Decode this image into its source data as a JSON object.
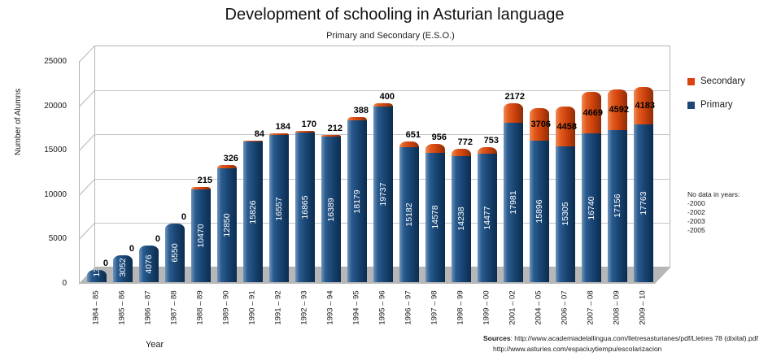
{
  "chart_data": {
    "type": "bar",
    "stacked": true,
    "title": "Development of schooling in Asturian language",
    "subtitle": "Primary and Secondary (E.S.O.)",
    "xlabel": "Year",
    "ylabel": "Number of Alumns",
    "ylim": [
      0,
      25000
    ],
    "ytick_step": 5000,
    "grid": true,
    "legend_position": "right",
    "categories": [
      "1984 – 85",
      "1985 – 86",
      "1986 – 87",
      "1987 – 88",
      "1988 – 89",
      "1989 – 90",
      "1990 – 91",
      "1991 – 92",
      "1992 – 93",
      "1993 – 94",
      "1994 – 95",
      "1995 – 96",
      "1996 – 97",
      "1997 – 98",
      "1998 – 99",
      "1999 – 00",
      "2001 – 02",
      "2004 – 05",
      "2006 – 07",
      "2007 – 08",
      "2008 – 09",
      "2009 – 10"
    ],
    "series": [
      {
        "name": "Primary",
        "color": "#1b4877",
        "values": [
          1351,
          3052,
          4076,
          6550,
          10470,
          12850,
          15826,
          16557,
          16865,
          16389,
          18179,
          19737,
          15182,
          14578,
          14238,
          14477,
          17981,
          15896,
          15305,
          16740,
          17156,
          17763
        ]
      },
      {
        "name": "Secondary",
        "color": "#d8430f",
        "values": [
          0,
          0,
          0,
          0,
          215,
          326,
          84,
          184,
          170,
          212,
          388,
          400,
          651,
          956,
          772,
          753,
          2172,
          3706,
          4458,
          4669,
          4592,
          4183
        ]
      }
    ],
    "note": {
      "title": "No data in years:",
      "lines": [
        "-2000",
        "-2002",
        "-2003",
        "-2005"
      ]
    },
    "sources": {
      "label": "Sources",
      "lines": [
        "http://www.academiadelallingua.com/lletresasturianes/pdf/Lletres 78 (dixital).pdf",
        "http://www.asturies.com/espaciuytiempu/escolarizacion"
      ]
    }
  }
}
